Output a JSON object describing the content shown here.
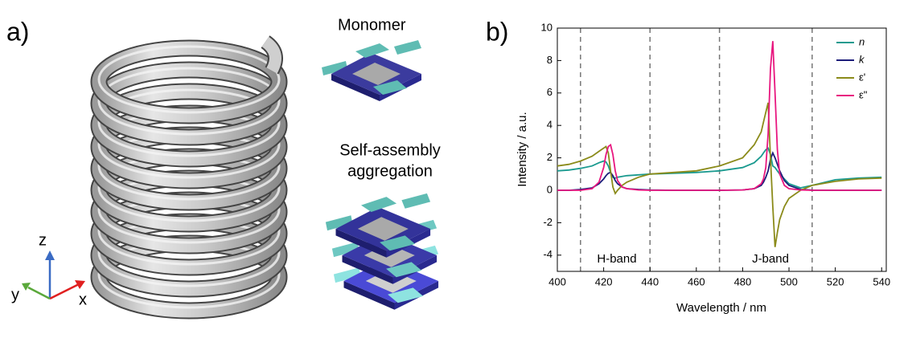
{
  "panel_a": {
    "label": "a)",
    "monomer": "Monomer",
    "aggregation": [
      "Self-assembly",
      "aggregation"
    ],
    "axes": {
      "z": "z",
      "y": "y",
      "x": "x"
    }
  },
  "chart_data": {
    "type": "line",
    "panel_label": "b)",
    "x_label": "Wavelength / nm",
    "y_label": "Intensity / a.u.",
    "xlim": [
      400,
      542
    ],
    "ylim": [
      -5,
      10
    ],
    "xticks": [
      400,
      420,
      440,
      460,
      480,
      500,
      520,
      540
    ],
    "yticks": [
      -4,
      -2,
      0,
      2,
      4,
      6,
      8,
      10
    ],
    "vlines": [
      410,
      440,
      470,
      510
    ],
    "annotations": [
      "H-band",
      "J-band"
    ],
    "legend": "upper right",
    "x": [
      400,
      405,
      410,
      415,
      418,
      420,
      421,
      422,
      423,
      424,
      425,
      426,
      428,
      430,
      435,
      440,
      450,
      460,
      470,
      480,
      485,
      488,
      489,
      490,
      491,
      492,
      493,
      494,
      495,
      496,
      498,
      500,
      505,
      510,
      520,
      530,
      540
    ],
    "series": [
      {
        "name": "n",
        "color": "#1a9a8f",
        "values": [
          1.2,
          1.25,
          1.35,
          1.5,
          1.7,
          1.8,
          1.75,
          1.5,
          1.1,
          0.8,
          0.75,
          0.8,
          0.85,
          0.9,
          0.95,
          1.0,
          1.05,
          1.1,
          1.2,
          1.4,
          1.7,
          2.1,
          2.3,
          2.5,
          2.6,
          2.2,
          1.5,
          1.4,
          1.2,
          1.0,
          0.7,
          0.4,
          0.15,
          0.3,
          0.65,
          0.75,
          0.8
        ]
      },
      {
        "name": "k",
        "color": "#1c1c7a",
        "values": [
          0,
          0,
          0.05,
          0.15,
          0.4,
          0.7,
          0.9,
          1.05,
          1.1,
          0.9,
          0.6,
          0.4,
          0.2,
          0.1,
          0.05,
          0.02,
          0,
          0,
          0,
          0.02,
          0.1,
          0.3,
          0.5,
          0.8,
          1.2,
          1.9,
          2.3,
          2.0,
          1.6,
          1.2,
          0.6,
          0.3,
          0.05,
          0.01,
          0,
          0,
          0
        ]
      },
      {
        "name": "ε'",
        "color": "#8b8b1a",
        "values": [
          1.5,
          1.6,
          1.8,
          2.1,
          2.4,
          2.6,
          2.7,
          2.3,
          1.2,
          0.2,
          -0.2,
          0,
          0.3,
          0.5,
          0.8,
          1.0,
          1.1,
          1.2,
          1.5,
          2.0,
          2.8,
          3.6,
          4.2,
          4.8,
          5.4,
          2.0,
          -1.0,
          -3.5,
          -2.6,
          -1.8,
          -1.0,
          -0.5,
          0,
          0.3,
          0.55,
          0.7,
          0.75
        ]
      },
      {
        "name": "ε\"",
        "color": "#e8177f",
        "values": [
          0,
          0,
          0,
          0.1,
          0.5,
          1.4,
          2.2,
          2.7,
          2.8,
          2.2,
          1.2,
          0.6,
          0.2,
          0.1,
          0.02,
          0,
          0,
          0,
          0,
          0.02,
          0.1,
          0.4,
          0.7,
          1.4,
          3.5,
          7.5,
          9.2,
          6.0,
          2.5,
          1.0,
          0.3,
          0.1,
          0.02,
          0,
          0,
          0,
          0
        ]
      }
    ]
  }
}
